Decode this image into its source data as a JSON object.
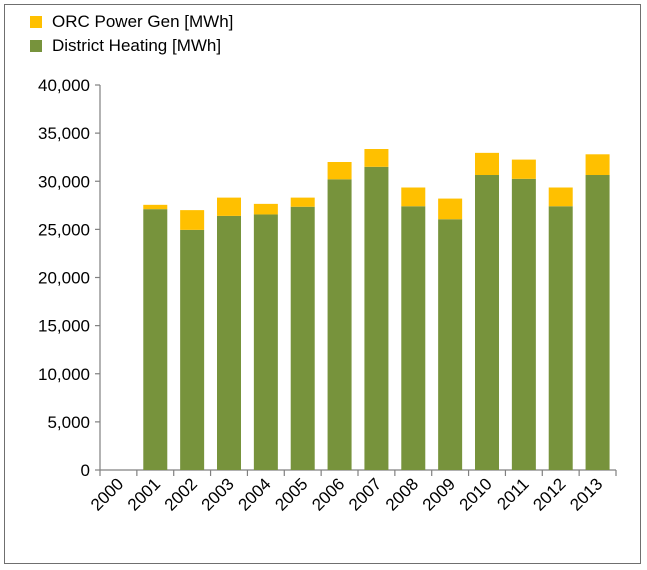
{
  "chart_data": {
    "type": "bar",
    "stacked": true,
    "title": "",
    "xlabel": "",
    "ylabel": "",
    "categories": [
      "2000",
      "2001",
      "2002",
      "2003",
      "2004",
      "2005",
      "2006",
      "2007",
      "2008",
      "2009",
      "2010",
      "2011",
      "2012",
      "2013"
    ],
    "series": [
      {
        "name": "District Heating [MWh]",
        "color": "#77933c",
        "values": [
          0,
          27100,
          24950,
          26400,
          26550,
          27350,
          30200,
          31500,
          27400,
          26050,
          30650,
          30250,
          27400,
          30650
        ]
      },
      {
        "name": "ORC Power Gen [MWh]",
        "color": "#ffc000",
        "values": [
          0,
          450,
          2050,
          1900,
          1100,
          950,
          1800,
          1850,
          1950,
          2150,
          2300,
          2000,
          1950,
          2150
        ]
      }
    ],
    "ylim": [
      0,
      40000
    ],
    "yticks": [
      0,
      5000,
      10000,
      15000,
      20000,
      25000,
      30000,
      35000,
      40000
    ],
    "ytick_labels": [
      "0",
      "5,000",
      "10,000",
      "15,000",
      "20,000",
      "25,000",
      "30,000",
      "35,000",
      "40,000"
    ],
    "legend": {
      "position": "top-left",
      "items": [
        {
          "label": "ORC Power Gen [MWh]",
          "color": "#ffc000"
        },
        {
          "label": "District Heating [MWh]",
          "color": "#77933c"
        }
      ]
    },
    "grid": false
  }
}
